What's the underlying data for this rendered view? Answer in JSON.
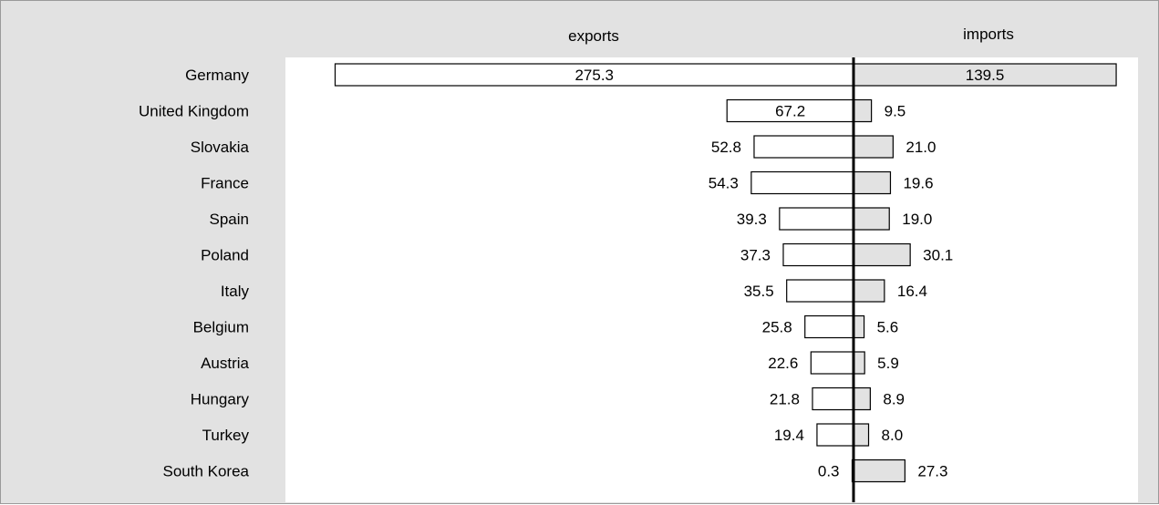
{
  "chart_data": {
    "type": "bar",
    "orientation": "horizontal-diverging",
    "grid": false,
    "legend": "none",
    "column_headers": {
      "left": "exports",
      "right": "imports"
    },
    "categories": [
      "Germany",
      "United Kingdom",
      "Slovakia",
      "France",
      "Spain",
      "Poland",
      "Italy",
      "Belgium",
      "Austria",
      "Hungary",
      "Turkey",
      "South Korea"
    ],
    "series": [
      {
        "values": [
          275.3,
          67.2,
          52.8,
          54.3,
          39.3,
          37.3,
          35.5,
          25.8,
          22.6,
          21.8,
          19.4,
          0.3
        ],
        "direction": "left",
        "color": "#ffffff"
      },
      {
        "values": [
          139.5,
          9.5,
          21.0,
          19.6,
          19.0,
          30.1,
          16.4,
          5.6,
          5.9,
          8.9,
          8.0,
          27.3
        ],
        "direction": "right",
        "color": "#e2e2e2"
      }
    ],
    "value_labels": {
      "exports": [
        "275.3",
        "67.2",
        "52.8",
        "54.3",
        "39.3",
        "37.3",
        "35.5",
        "25.8",
        "22.6",
        "21.8",
        "19.4",
        "0.3"
      ],
      "imports": [
        "139.5",
        "9.5",
        "21.0",
        "19.6",
        "19.0",
        "30.1",
        "16.4",
        "5.6",
        "5.9",
        "8.9",
        "8.0",
        "27.3"
      ]
    },
    "label_placement": "inside-bar-when-wide",
    "colors": {
      "background": "#e2e2e2",
      "plot_area": "#ffffff",
      "bar_stroke": "#000000",
      "axis": "#000000",
      "frame": "#9a9a9a"
    }
  }
}
